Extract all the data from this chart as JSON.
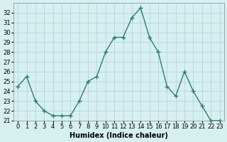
{
  "x": [
    0,
    1,
    2,
    3,
    4,
    5,
    6,
    7,
    8,
    9,
    10,
    11,
    12,
    13,
    14,
    15,
    16,
    17,
    18,
    19,
    20,
    21,
    22,
    23
  ],
  "y": [
    24.5,
    25.5,
    23.0,
    22.0,
    21.5,
    21.5,
    21.5,
    23.0,
    25.0,
    25.5,
    28.0,
    29.5,
    29.5,
    31.5,
    32.5,
    29.5,
    28.0,
    24.5,
    23.5,
    26.0,
    24.0,
    22.5,
    21.0,
    21.0
  ],
  "xlabel": "Humidex (Indice chaleur)",
  "xlim": [
    -0.5,
    23.5
  ],
  "ylim": [
    21,
    33
  ],
  "yticks": [
    21,
    22,
    23,
    24,
    25,
    26,
    27,
    28,
    29,
    30,
    31,
    32
  ],
  "xticks": [
    0,
    1,
    2,
    3,
    4,
    5,
    6,
    7,
    8,
    9,
    10,
    11,
    12,
    13,
    14,
    15,
    16,
    17,
    18,
    19,
    20,
    21,
    22,
    23
  ],
  "line_color": "#2d7d6e",
  "marker": "+",
  "bg_color": "#d6f0f0",
  "grid_color": "#b0cece",
  "label_fontsize": 7,
  "tick_fontsize": 6
}
